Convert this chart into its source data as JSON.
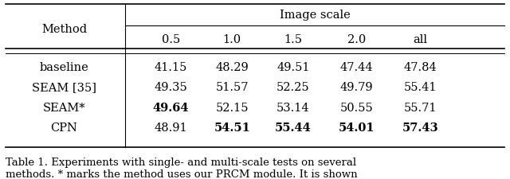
{
  "col_header_top": "Image scale",
  "col_header_sub": [
    "0.5",
    "1.0",
    "1.5",
    "2.0",
    "all"
  ],
  "row_header": "Method",
  "rows": [
    {
      "method": "baseline",
      "values": [
        "41.15",
        "48.29",
        "49.51",
        "47.44",
        "47.84"
      ],
      "bold": [
        false,
        false,
        false,
        false,
        false
      ]
    },
    {
      "method": "SEAM [35]",
      "values": [
        "49.35",
        "51.57",
        "52.25",
        "49.79",
        "55.41"
      ],
      "bold": [
        false,
        false,
        false,
        false,
        false
      ]
    },
    {
      "method": "SEAM*",
      "values": [
        "49.64",
        "52.15",
        "53.14",
        "50.55",
        "55.71"
      ],
      "bold": [
        true,
        false,
        false,
        false,
        false
      ]
    },
    {
      "method": "CPN",
      "values": [
        "48.91",
        "54.51",
        "55.44",
        "54.01",
        "57.43"
      ],
      "bold": [
        false,
        true,
        true,
        true,
        true
      ]
    }
  ],
  "caption": "Table 1. Experiments with single- and multi-scale tests on several\nmethods. * marks the method uses our PRCM module. It is shown",
  "bg_color": "#ffffff",
  "text_color": "#000000",
  "font_size": 10.5,
  "caption_font_size": 9.5
}
